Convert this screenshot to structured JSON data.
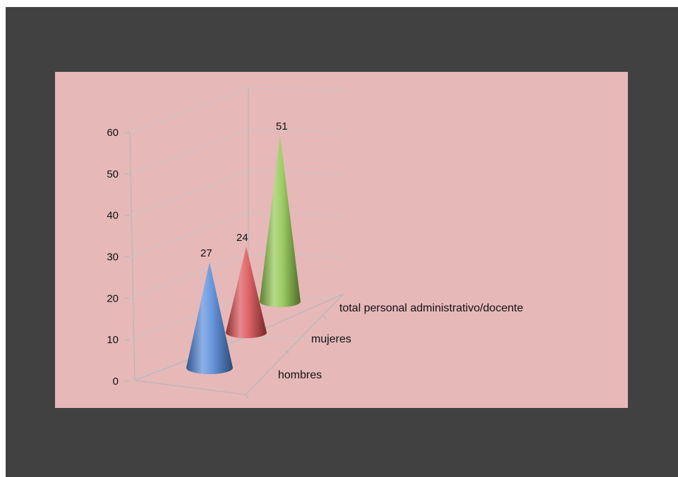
{
  "colors": {
    "frame": "#414141",
    "plot_background": "#e6b8b8",
    "cone_colors": [
      "#4f86d9",
      "#d94a4c",
      "#8fc54a"
    ]
  },
  "chart_data": {
    "type": "bar",
    "style": "3d-cone",
    "categories": [
      "hombres",
      "mujeres",
      "total personal administrativo/docente"
    ],
    "values": [
      27,
      24,
      51
    ],
    "data_labels": [
      "27",
      "24",
      "51"
    ],
    "ylim": [
      0,
      60
    ],
    "yticks": [
      0,
      10,
      20,
      30,
      40,
      50,
      60
    ],
    "grid": true,
    "legend": "none",
    "title": "",
    "xlabel": "",
    "ylabel": ""
  }
}
